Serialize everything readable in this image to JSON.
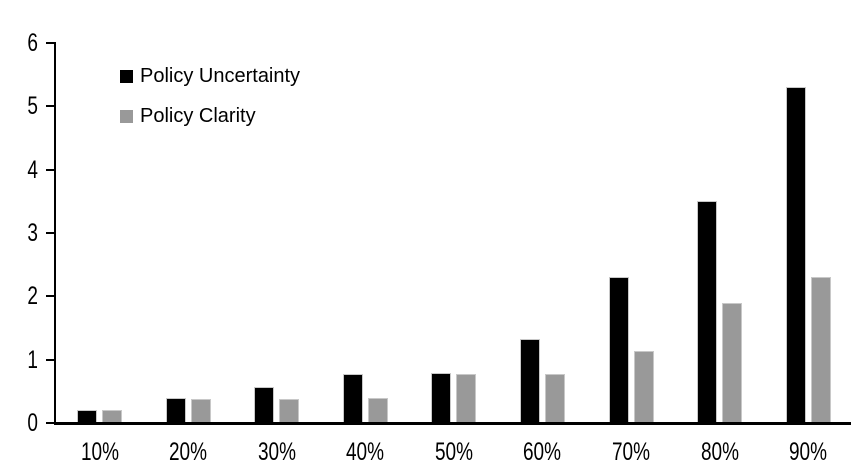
{
  "chart_data": {
    "type": "bar",
    "title": "",
    "xlabel": "",
    "ylabel": "",
    "categories": [
      "10%",
      "20%",
      "30%",
      "40%",
      "50%",
      "60%",
      "70%",
      "80%",
      "90%"
    ],
    "series": [
      {
        "name": "Policy Uncertainty",
        "color": "#000000",
        "values": [
          0.2,
          0.4,
          0.57,
          0.77,
          0.79,
          1.33,
          2.3,
          3.5,
          5.3
        ]
      },
      {
        "name": "Policy Clarity",
        "color": "#999999",
        "values": [
          0.2,
          0.38,
          0.38,
          0.39,
          0.77,
          0.77,
          1.13,
          1.9,
          2.3
        ]
      }
    ],
    "ylim": [
      0,
      6
    ],
    "yticks": [
      0,
      1,
      2,
      3,
      4,
      5,
      6
    ],
    "grid": false,
    "legend_position": "inside-top-left",
    "axis_color": "#000000",
    "background": "#ffffff"
  }
}
